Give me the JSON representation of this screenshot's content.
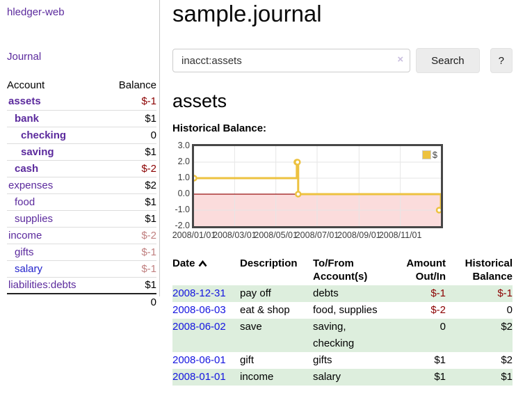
{
  "app": {
    "title": "hledger-web",
    "nav_journal": "Journal"
  },
  "colors": {
    "accent_purple": "#5b2a9d",
    "link_blue": "#1414e0",
    "negative_strong": "#8b0000",
    "negative_soft": "#c08080",
    "row_green": "#ddeedd",
    "button_gray": "#ececec"
  },
  "sidebar": {
    "table": {
      "col_account": "Account",
      "col_balance": "Balance"
    },
    "accounts": [
      {
        "name": "assets",
        "level": 0,
        "bold": true,
        "balance": "$-1",
        "balance_class": "neg-strong"
      },
      {
        "name": "bank",
        "level": 1,
        "bold": true,
        "balance": "$1",
        "balance_class": ""
      },
      {
        "name": "checking",
        "level": 2,
        "bold": true,
        "balance": "0",
        "balance_class": ""
      },
      {
        "name": "saving",
        "level": 2,
        "bold": true,
        "balance": "$1",
        "balance_class": ""
      },
      {
        "name": "cash",
        "level": 1,
        "bold": true,
        "balance": "$-2",
        "balance_class": "neg-strong"
      },
      {
        "name": "expenses",
        "level": 0,
        "bold": false,
        "balance": "$2",
        "balance_class": ""
      },
      {
        "name": "food",
        "level": 1,
        "bold": false,
        "balance": "$1",
        "balance_class": ""
      },
      {
        "name": "supplies",
        "level": 1,
        "bold": false,
        "balance": "$1",
        "balance_class": ""
      },
      {
        "name": "income",
        "level": 0,
        "bold": false,
        "balance": "$-2",
        "balance_class": "neg-soft"
      },
      {
        "name": "gifts",
        "level": 1,
        "bold": false,
        "balance": "$-1",
        "balance_class": "neg-soft"
      },
      {
        "name": "salary",
        "level": 1,
        "bold": false,
        "balance": "$-1",
        "balance_class": "neg-soft",
        "link_blue": true
      },
      {
        "name": "liabilities:debts",
        "level": 0,
        "bold": false,
        "balance": "$1",
        "balance_class": ""
      }
    ],
    "total": "0"
  },
  "header": {
    "title": "sample.journal"
  },
  "search": {
    "value": "inacct:assets",
    "clear_icon": "×",
    "button": "Search",
    "help_button": "?"
  },
  "account_page": {
    "heading": "assets",
    "chart_label": "Historical Balance:"
  },
  "chart_data": {
    "type": "line",
    "title": "Historical Balance",
    "series": [
      {
        "name": "$",
        "steps": true,
        "color": "#edc240",
        "points": [
          [
            "2008-01-01",
            1
          ],
          [
            "2008-06-01",
            2
          ],
          [
            "2008-06-02",
            2
          ],
          [
            "2008-06-03",
            0
          ],
          [
            "2008-12-31",
            -1
          ]
        ]
      }
    ],
    "x_ticks": [
      "2008/01/01",
      "2008/03/01",
      "2008/05/01",
      "2008/07/01",
      "2008/09/01",
      "2008/11/01"
    ],
    "y_ticks": [
      "3.0",
      "2.0",
      "1.0",
      "0.0",
      "-1.0",
      "-2.0"
    ],
    "xlim": [
      "2008-01-01",
      "2008-12-31"
    ],
    "ylim": [
      -2,
      3
    ],
    "grid": true,
    "legend": {
      "label": "$",
      "position": "top-right"
    },
    "negative_region_color": "#fbdcdc",
    "zero_line_color": "#991111",
    "gridline_color": "#e6e6e6"
  },
  "register": {
    "columns": [
      "Date",
      "Description",
      "To/From Account(s)",
      "Amount Out/In",
      "Historical Balance"
    ],
    "sort": "date-ascending",
    "rows": [
      {
        "date": "2008-12-31",
        "description": "pay off",
        "accounts": "debts",
        "amount": "$-1",
        "amount_neg": true,
        "balance": "$-1",
        "balance_neg": true
      },
      {
        "date": "2008-06-03",
        "description": "eat & shop",
        "accounts": "food, supplies",
        "amount": "$-2",
        "amount_neg": true,
        "balance": "0",
        "balance_neg": false
      },
      {
        "date": "2008-06-02",
        "description": "save",
        "accounts": "saving, checking",
        "amount": "0",
        "amount_neg": false,
        "balance": "$2",
        "balance_neg": false
      },
      {
        "date": "2008-06-01",
        "description": "gift",
        "accounts": "gifts",
        "amount": "$1",
        "amount_neg": false,
        "balance": "$2",
        "balance_neg": false
      },
      {
        "date": "2008-01-01",
        "description": "income",
        "accounts": "salary",
        "amount": "$1",
        "amount_neg": false,
        "balance": "$1",
        "balance_neg": false
      }
    ]
  }
}
